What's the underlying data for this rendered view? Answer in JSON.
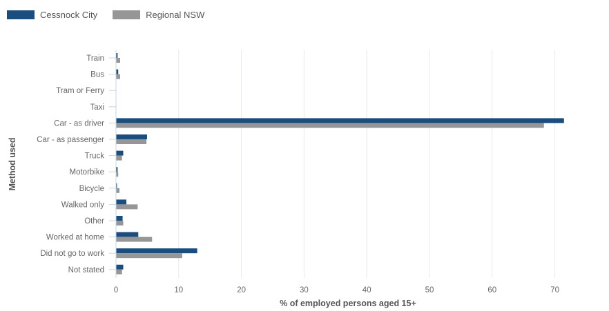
{
  "colors": {
    "cessnock": "#1b4e7e",
    "regional": "#969696",
    "grid": "#e8e8ee",
    "axis": "#c8d4e6"
  },
  "chart_data": {
    "type": "bar",
    "orientation": "horizontal",
    "categories": [
      "Train",
      "Bus",
      "Tram or Ferry",
      "Taxi",
      "Car - as driver",
      "Car - as passenger",
      "Truck",
      "Motorbike",
      "Bicycle",
      "Walked only",
      "Other",
      "Worked at home",
      "Did not go to work",
      "Not stated"
    ],
    "series": [
      {
        "name": "Cessnock City",
        "color": "#1b4e7e",
        "values": [
          0.2,
          0.3,
          0.0,
          0.0,
          71.4,
          4.9,
          1.1,
          0.2,
          0.1,
          1.6,
          1.0,
          3.5,
          12.9,
          1.1
        ]
      },
      {
        "name": "Regional NSW",
        "color": "#969696",
        "values": [
          0.6,
          0.6,
          0.0,
          0.0,
          68.2,
          4.8,
          0.9,
          0.3,
          0.5,
          3.4,
          1.1,
          5.7,
          10.5,
          0.9
        ]
      }
    ],
    "xlabel": "% of employed persons aged 15+",
    "ylabel": "Method used",
    "xlim": [
      0,
      80
    ],
    "xticks": [
      "0",
      "10",
      "20",
      "30",
      "40",
      "50",
      "60",
      "70"
    ],
    "grid": true,
    "legend": "top-left"
  }
}
